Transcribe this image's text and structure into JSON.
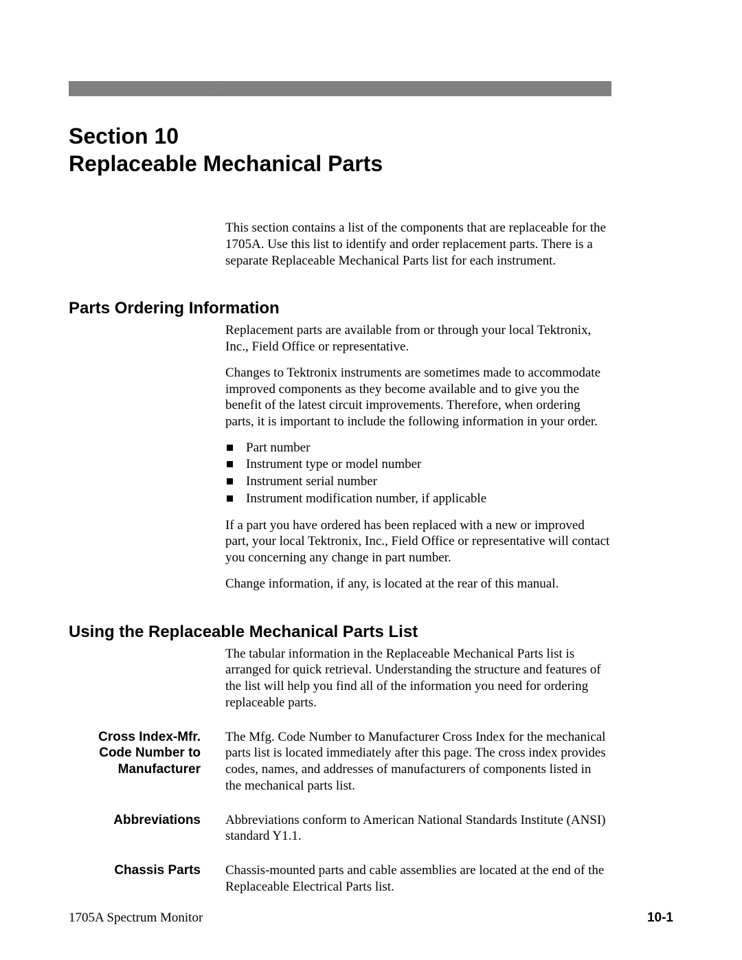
{
  "colors": {
    "header_bar": "#808080",
    "text": "#000000",
    "background": "#ffffff"
  },
  "typography": {
    "title_font": "Arial",
    "title_size_pt": 24,
    "subhead_size_pt": 18,
    "body_font": "Times New Roman",
    "body_size_pt": 14
  },
  "title": {
    "line1": "Section 10",
    "line2": "Replaceable Mechanical Parts"
  },
  "intro": "This section contains a list of the components that are replaceable for the 1705A. Use this list to identify and order replacement parts. There is a separate Replaceable Mechanical Parts list for each instrument.",
  "ordering": {
    "heading": "Parts Ordering Information",
    "p1": "Replacement parts are available from or through your local Tektronix, Inc., Field Office or representative.",
    "p2": "Changes to Tektronix instruments are sometimes made to accommodate improved components as they become available and to give you the benefit of the latest circuit improvements. Therefore, when ordering parts, it is important to include the following information in your order.",
    "bullets": [
      "Part number",
      "Instrument type or model number",
      "Instrument serial number",
      "Instrument modification number, if applicable"
    ],
    "p3": "If a part you have ordered has been replaced with a new or improved part, your local Tektronix, Inc., Field Office or representative will contact you concerning any change in part number.",
    "p4": "Change information, if any, is located at the rear of this manual."
  },
  "using": {
    "heading": "Using the Replaceable Mechanical Parts List",
    "p1": "The tabular information in the Replaceable Mechanical Parts list is arranged for quick retrieval. Understanding the structure and features of the list will help you find all of the information you need for ordering replaceable parts.",
    "defs": [
      {
        "term": "Cross Index‑Mfr. Code Number to Manufacturer",
        "def": "The Mfg. Code Number to Manufacturer Cross Index for the mechanical parts list is located immediately after this page. The cross index provides codes, names, and addresses of manufacturers of components listed in the mechanical parts list."
      },
      {
        "term": "Abbreviations",
        "def": "Abbreviations conform to American National Standards Institute (ANSI) standard Y1.1."
      },
      {
        "term": "Chassis Parts",
        "def": "Chassis-mounted parts and cable assemblies are located at the end of the Replaceable Electrical Parts list."
      }
    ]
  },
  "footer": {
    "left": "1705A Spectrum Monitor",
    "right": "10‑1"
  }
}
